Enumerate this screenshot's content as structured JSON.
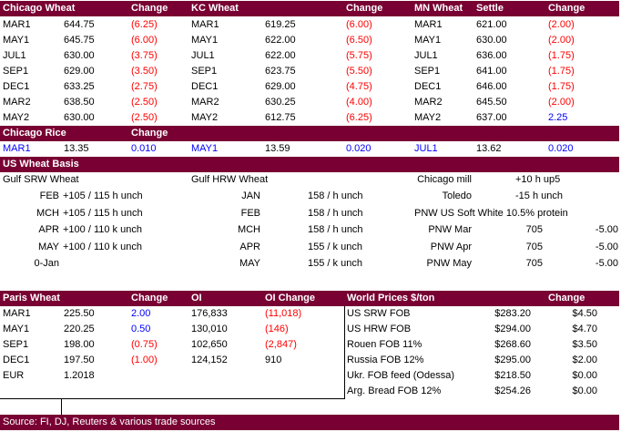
{
  "colors": {
    "header_bg": "#780032",
    "header_text": "#ffffff",
    "negative": "#ff0000",
    "positive": "#0000ff",
    "text": "#000000"
  },
  "futures": {
    "headers": [
      "Chicago Wheat",
      "Change",
      "KC Wheat",
      "Change",
      "MN Wheat",
      "Settle",
      "Change"
    ],
    "rows": [
      [
        "MAR1",
        "644.75",
        "(6.25)",
        "MAR1",
        "619.25",
        "(6.00)",
        "MAR1",
        "621.00",
        "(2.00)"
      ],
      [
        "MAY1",
        "645.75",
        "(6.00)",
        "MAY1",
        "622.00",
        "(6.50)",
        "MAY1",
        "630.00",
        "(2.00)"
      ],
      [
        "JUL1",
        "630.00",
        "(3.75)",
        "JUL1",
        "622.00",
        "(5.75)",
        "JUL1",
        "636.00",
        "(1.75)"
      ],
      [
        "SEP1",
        "629.00",
        "(3.50)",
        "SEP1",
        "623.75",
        "(5.50)",
        "SEP1",
        "641.00",
        "(1.75)"
      ],
      [
        "DEC1",
        "633.25",
        "(2.75)",
        "DEC1",
        "629.00",
        "(4.75)",
        "DEC1",
        "646.00",
        "(1.75)"
      ],
      [
        "MAR2",
        "638.50",
        "(2.50)",
        "MAR2",
        "630.25",
        "(4.00)",
        "MAR2",
        "645.50",
        "(2.00)"
      ],
      [
        "MAY2",
        "630.00",
        "(2.50)",
        "MAY2",
        "612.75",
        "(6.25)",
        "MAY2",
        "637.00",
        "2.25"
      ]
    ]
  },
  "rice": {
    "headers": [
      "Chicago Rice",
      "Change"
    ],
    "row": [
      "MAR1",
      "13.35",
      "0.010",
      "MAY1",
      "13.59",
      "0.020",
      "JUL1",
      "13.62",
      "0.020"
    ]
  },
  "basis": {
    "title": "US Wheat Basis",
    "gulf_srw_label": "Gulf SRW Wheat",
    "gulf_hrw_label": "Gulf HRW Wheat",
    "srw": [
      [
        "FEB",
        "+105 / 115 h  unch"
      ],
      [
        "MCH",
        "+105 / 115 h  unch"
      ],
      [
        "APR",
        "+100 / 110 k  unch"
      ],
      [
        "MAY",
        "+100 / 110 k  unch"
      ],
      [
        "0-Jan",
        ""
      ]
    ],
    "hrw": [
      [
        "JAN",
        "158 / h  unch"
      ],
      [
        "FEB",
        "158 / h  unch"
      ],
      [
        "MCH",
        "158 / h  unch"
      ],
      [
        "APR",
        "155 / k  unch"
      ],
      [
        "MAY",
        "155 / k  unch"
      ]
    ],
    "chicago_mill": [
      "Chicago mill",
      "+10 h  up5"
    ],
    "toledo": [
      "Toledo",
      "-15 h  unch"
    ],
    "pnw_title": "PNW US Soft White 10.5% protein",
    "pnw": [
      [
        "PNW Mar",
        "705",
        "-5.00"
      ],
      [
        "PNW Apr",
        "705",
        "-5.00"
      ],
      [
        "PNW May",
        "705",
        "-5.00"
      ]
    ]
  },
  "paris": {
    "headers": [
      "Paris Wheat",
      "Change",
      "OI",
      "OI Change"
    ],
    "rows": [
      [
        "MAR1",
        "225.50",
        "2.00",
        "176,833",
        "(11,018)"
      ],
      [
        "MAY1",
        "220.25",
        "0.50",
        "130,010",
        "(146)"
      ],
      [
        "SEP1",
        "198.00",
        "(0.75)",
        "102,650",
        "(2,847)"
      ],
      [
        "DEC1",
        "197.50",
        "(1.00)",
        "124,152",
        "910"
      ],
      [
        "EUR",
        "1.2018",
        "",
        "",
        ""
      ]
    ]
  },
  "world": {
    "headers": [
      "World Prices $/ton",
      "Change"
    ],
    "rows": [
      [
        "US SRW FOB",
        "$283.20",
        "$4.50"
      ],
      [
        "US HRW FOB",
        "$294.00",
        "$4.70"
      ],
      [
        "Rouen FOB 11%",
        "$268.60",
        "$3.50"
      ],
      [
        "Russia FOB 12%",
        "$295.00",
        "$2.00"
      ],
      [
        "Ukr. FOB feed (Odessa)",
        "$218.50",
        "$0.00"
      ],
      [
        "Arg. Bread FOB 12%",
        "$254.26",
        "$0.00"
      ]
    ]
  },
  "source": "Source: FI, DJ, Reuters & various trade sources"
}
